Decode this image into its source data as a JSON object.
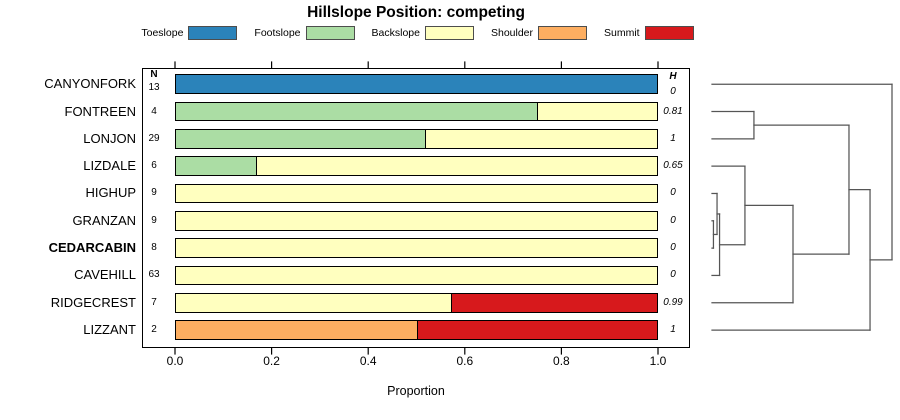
{
  "chart_data": {
    "type": "bar",
    "orientation": "horizontal",
    "stacked": true,
    "title": "Hillslope Position: competing",
    "xlabel": "Proportion",
    "xlim": [
      0,
      1
    ],
    "x_ticks": [
      "0.0",
      "0.2",
      "0.4",
      "0.6",
      "0.8",
      "1.0"
    ],
    "grid": false,
    "legend_position": "top",
    "categories": [
      "Toeslope",
      "Footslope",
      "Backslope",
      "Shoulder",
      "Summit"
    ],
    "palette": {
      "Toeslope": "#2b83ba",
      "Footslope": "#abdda4",
      "Backslope": "#ffffbf",
      "Shoulder": "#fdae61",
      "Summit": "#d7191c"
    },
    "column_headers": {
      "n_label": "N",
      "h_label": "H"
    },
    "rows": [
      {
        "name": "CANYONFORK",
        "n": 13,
        "shannon_h": "0",
        "bold": false,
        "segments": [
          {
            "category": "Toeslope",
            "proportion": 1.0
          }
        ]
      },
      {
        "name": "FONTREEN",
        "n": 4,
        "shannon_h": "0.81",
        "bold": false,
        "segments": [
          {
            "category": "Footslope",
            "proportion": 0.75
          },
          {
            "category": "Backslope",
            "proportion": 0.25
          }
        ]
      },
      {
        "name": "LONJON",
        "n": 29,
        "shannon_h": "1",
        "bold": false,
        "segments": [
          {
            "category": "Footslope",
            "proportion": 0.517
          },
          {
            "category": "Backslope",
            "proportion": 0.483
          }
        ]
      },
      {
        "name": "LIZDALE",
        "n": 6,
        "shannon_h": "0.65",
        "bold": false,
        "segments": [
          {
            "category": "Footslope",
            "proportion": 0.167
          },
          {
            "category": "Backslope",
            "proportion": 0.833
          }
        ]
      },
      {
        "name": "HIGHUP",
        "n": 9,
        "shannon_h": "0",
        "bold": false,
        "segments": [
          {
            "category": "Backslope",
            "proportion": 1.0
          }
        ]
      },
      {
        "name": "GRANZAN",
        "n": 9,
        "shannon_h": "0",
        "bold": false,
        "segments": [
          {
            "category": "Backslope",
            "proportion": 1.0
          }
        ]
      },
      {
        "name": "CEDARCABIN",
        "n": 8,
        "shannon_h": "0",
        "bold": true,
        "segments": [
          {
            "category": "Backslope",
            "proportion": 1.0
          }
        ]
      },
      {
        "name": "CAVEHILL",
        "n": 63,
        "shannon_h": "0",
        "bold": false,
        "segments": [
          {
            "category": "Backslope",
            "proportion": 1.0
          }
        ]
      },
      {
        "name": "RIDGECREST",
        "n": 7,
        "shannon_h": "0.99",
        "bold": false,
        "segments": [
          {
            "category": "Backslope",
            "proportion": 0.571
          },
          {
            "category": "Summit",
            "proportion": 0.429
          }
        ]
      },
      {
        "name": "LIZZANT",
        "n": 2,
        "shannon_h": "1",
        "bold": false,
        "segments": [
          {
            "category": "Shoulder",
            "proportion": 0.5
          },
          {
            "category": "Summit",
            "proportion": 0.5
          }
        ]
      }
    ],
    "dendrogram": {
      "height": 1.0,
      "children": [
        {
          "leaf": "CANYONFORK"
        },
        {
          "height": 0.878,
          "children": [
            {
              "height": 0.761,
              "children": [
                {
                  "height": 0.233,
                  "children": [
                    {
                      "leaf": "FONTREEN"
                    },
                    {
                      "leaf": "LONJON"
                    }
                  ]
                },
                {
                  "height": 0.45,
                  "children": [
                    {
                      "height": 0.183,
                      "children": [
                        {
                          "leaf": "LIZDALE"
                        },
                        {
                          "height": 0.042,
                          "children": [
                            {
                              "height": 0.028,
                              "children": [
                                {
                                  "leaf": "HIGHUP"
                                },
                                {
                                  "height": 0.008,
                                  "children": [
                                    {
                                      "leaf": "GRANZAN"
                                    },
                                    {
                                      "leaf": "CEDARCABIN"
                                    }
                                  ]
                                }
                              ]
                            },
                            {
                              "leaf": "CAVEHILL"
                            }
                          ]
                        }
                      ]
                    },
                    {
                      "leaf": "RIDGECREST"
                    }
                  ]
                }
              ]
            },
            {
              "leaf": "LIZZANT"
            }
          ]
        }
      ]
    }
  }
}
